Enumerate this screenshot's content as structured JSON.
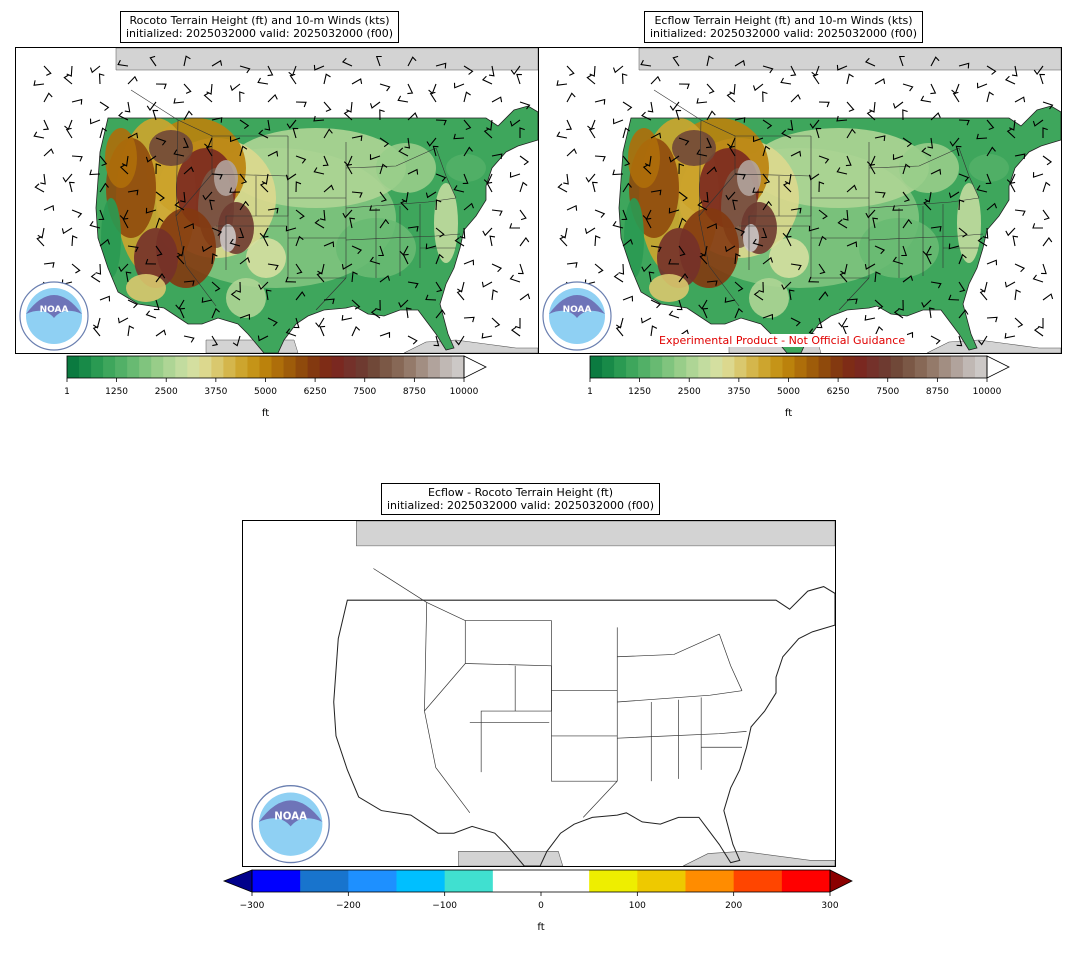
{
  "panels": [
    {
      "title_line1": "Rocoto Terrain Height (ft) and 10-m Winds (kts)",
      "title_line2": "initialized: 2025032000 valid: 2025032000 (f00)"
    },
    {
      "title_line1": "Ecflow Terrain Height (ft) and 10-m Winds (kts)",
      "title_line2": "initialized: 2025032000 valid: 2025032000 (f00)"
    },
    {
      "title_line1": "Ecflow - Rocoto Terrain Height (ft)",
      "title_line2": "initialized: 2025032000 valid: 2025032000 (f00)"
    }
  ],
  "disclaimer": "Experimental Product - Not Official Guidance",
  "logo_text": "NOAA",
  "colors": {
    "land_gray": "#d3d3d3",
    "warn": "#e00000"
  },
  "chart_data": [
    {
      "type": "heatmap",
      "variable": "terrain_height",
      "units": "ft",
      "colorbar": {
        "min": 1,
        "max": 10000,
        "extend": "max",
        "ticks": [
          1,
          1250,
          2500,
          3750,
          5000,
          6250,
          7500,
          8750,
          10000
        ],
        "tick_labels": [
          "1",
          "1250",
          "2500",
          "3750",
          "5000",
          "6250",
          "7500",
          "8750",
          "10000"
        ],
        "label": "ft",
        "colors": [
          "#0b7a40",
          "#188a48",
          "#2a9a52",
          "#3ea65c",
          "#52b067",
          "#68ba72",
          "#80c47e",
          "#98cd89",
          "#aed595",
          "#c2dc9f",
          "#d4dfa0",
          "#dcd88e",
          "#d9c86e",
          "#d4b64c",
          "#cda52e",
          "#c59418",
          "#bb820c",
          "#ae6e0a",
          "#9e5c0a",
          "#8f4a0c",
          "#833910",
          "#7e2c16",
          "#7a2820",
          "#74312a",
          "#6e3a30",
          "#704838",
          "#7b5846",
          "#876856",
          "#947a6a",
          "#a28e82",
          "#b1a39c",
          "#c0b8b4",
          "#ccc8c6"
        ]
      },
      "overlay": "10-m wind barbs (kts)"
    },
    {
      "type": "heatmap",
      "variable": "terrain_height",
      "units": "ft",
      "colorbar": {
        "min": 1,
        "max": 10000,
        "extend": "max",
        "ticks": [
          1,
          1250,
          2500,
          3750,
          5000,
          6250,
          7500,
          8750,
          10000
        ],
        "tick_labels": [
          "1",
          "1250",
          "2500",
          "3750",
          "5000",
          "6250",
          "7500",
          "8750",
          "10000"
        ],
        "label": "ft"
      },
      "overlay": "10-m wind barbs (kts)"
    },
    {
      "type": "heatmap",
      "variable": "terrain_height_difference",
      "units": "ft",
      "colorbar": {
        "min": -300,
        "max": 300,
        "extend": "both",
        "ticks": [
          -300,
          -200,
          -100,
          0,
          100,
          200,
          300
        ],
        "tick_labels": [
          "−300",
          "−200",
          "−100",
          "0",
          "100",
          "200",
          "300"
        ],
        "label": "ft",
        "bounds": [
          -300,
          -250,
          -200,
          -150,
          -100,
          -50,
          50,
          100,
          150,
          200,
          250,
          300
        ],
        "colors": [
          "#0000ff",
          "#1874cd",
          "#1e90ff",
          "#00bfff",
          "#40e0d0",
          "#ffffff",
          "#eeee00",
          "#eec900",
          "#ff8c00",
          "#ff4500",
          "#ff0000"
        ],
        "under_color": "#00008b",
        "over_color": "#8b0000"
      },
      "field_summary": "all differences within the white (-50 to 50) band"
    }
  ]
}
